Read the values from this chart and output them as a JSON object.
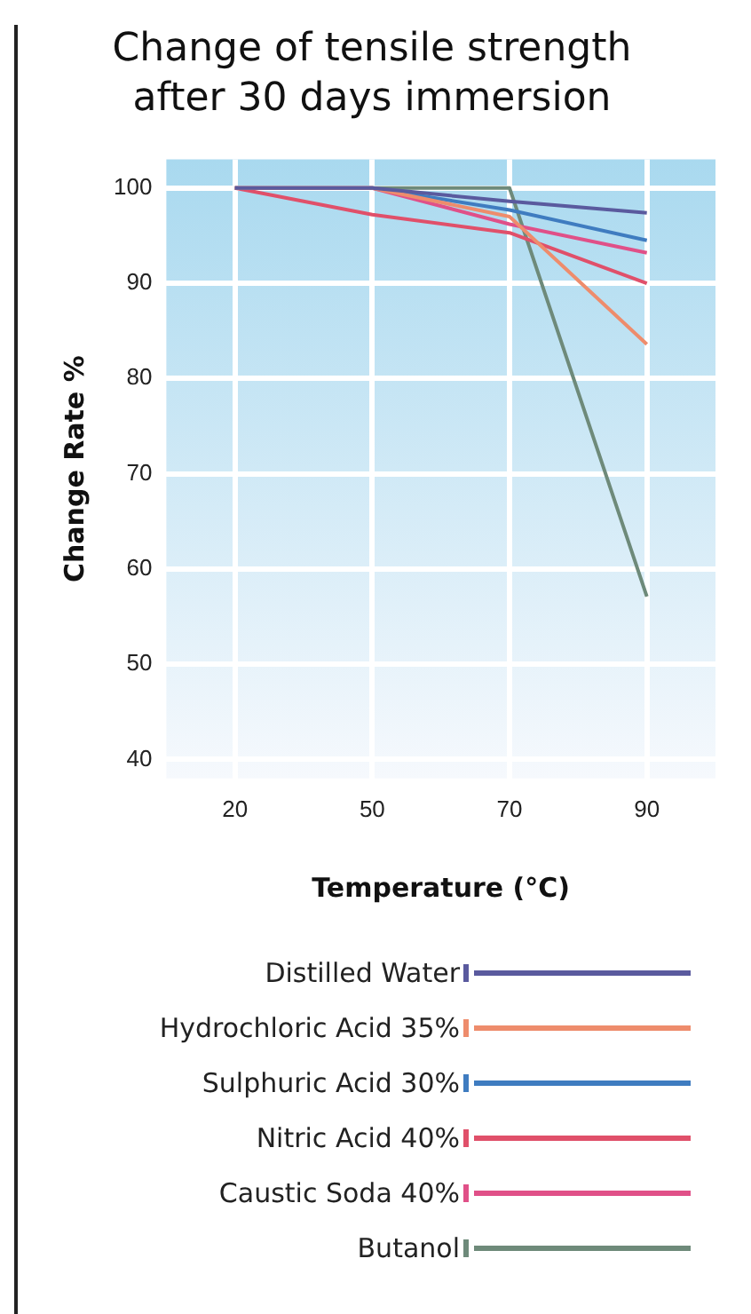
{
  "chart_data": {
    "type": "line",
    "title": "Change of tensile strength after 30 days immersion",
    "xlabel": "Temperature (°C)",
    "ylabel": "Change Rate %",
    "categories": [
      "20",
      "50",
      "70",
      "90"
    ],
    "series": [
      {
        "name": "Distilled Water",
        "color": "#5a5a9e",
        "values": [
          100,
          100,
          98.6,
          97.4
        ]
      },
      {
        "name": "Hydrochloric Acid 35%",
        "color": "#ee8c6c",
        "values": [
          100,
          100,
          97.0,
          83.6
        ]
      },
      {
        "name": "Sulphuric Acid 30%",
        "color": "#3f7cc0",
        "values": [
          100,
          100,
          97.7,
          94.5
        ]
      },
      {
        "name": "Nitric Acid 40%",
        "color": "#e0506a",
        "values": [
          100,
          97.2,
          95.3,
          90
        ]
      },
      {
        "name": "Caustic Soda 40%",
        "color": "#e05088",
        "values": [
          100,
          100,
          96.2,
          93.2
        ]
      },
      {
        "name": "Butanol",
        "color": "#6e8a7a",
        "values": [
          100,
          100,
          100,
          57.1
        ]
      }
    ],
    "ylim": [
      38,
      103
    ],
    "yticks": [
      40,
      50,
      60,
      70,
      80,
      90,
      100
    ],
    "grid": true,
    "legend": "bottom"
  }
}
